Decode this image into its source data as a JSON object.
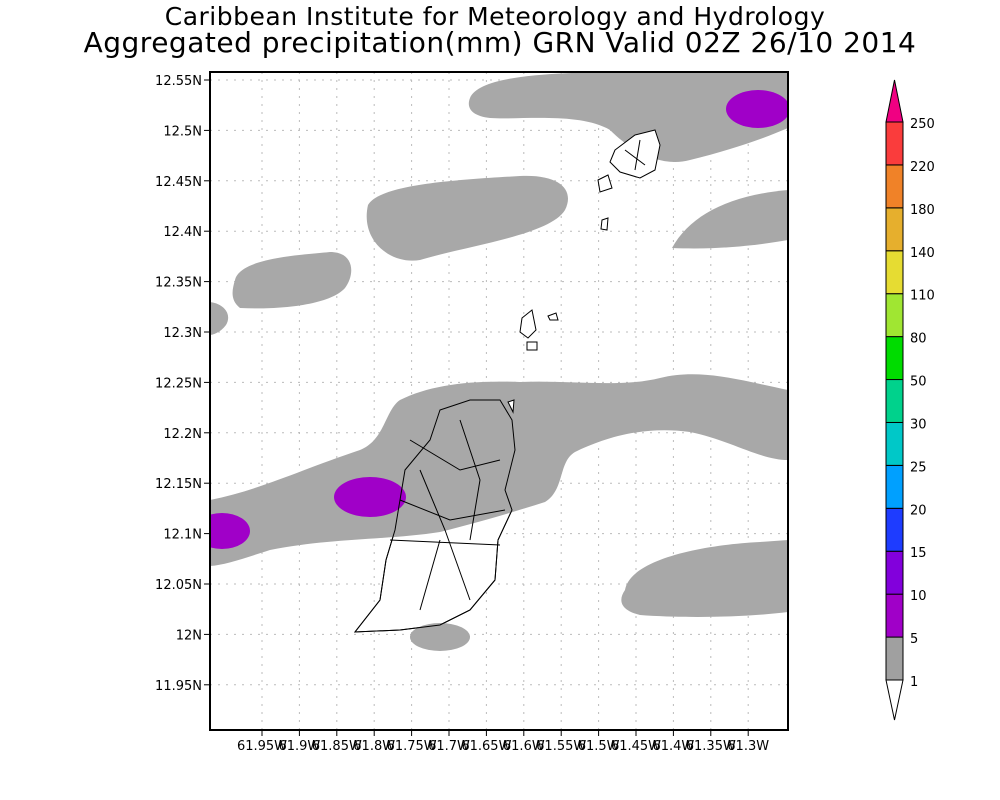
{
  "title_line1": "Caribbean Institute for Meteorology and Hydrology",
  "title_line2": "Aggregated precipitation(mm) GRN Valid 02Z 26/10 2014",
  "map": {
    "lat_labels": [
      "12.55N",
      "12.5N",
      "12.45N",
      "12.4N",
      "12.35N",
      "12.3N",
      "12.25N",
      "12.2N",
      "12.15N",
      "12.1N",
      "12.05N",
      "12N",
      "11.95N"
    ],
    "lon_labels": [
      "61.95W",
      "61.9W",
      "61.85W",
      "61.8W",
      "61.75W",
      "61.7W",
      "61.65W",
      "61.6W",
      "61.55W",
      "61.5W",
      "61.45W",
      "61.4W",
      "61.35W",
      "61.3W"
    ]
  },
  "colorbar": {
    "levels": [
      "1",
      "5",
      "10",
      "15",
      "20",
      "25",
      "30",
      "50",
      "80",
      "110",
      "140",
      "180",
      "220",
      "250"
    ],
    "colors": [
      "#a0a0a0",
      "#a000c8",
      "#8200dc",
      "#1e3cff",
      "#00a0ff",
      "#00c8c8",
      "#00d28c",
      "#00dc00",
      "#a0e632",
      "#e6dc32",
      "#e6af2d",
      "#f08228",
      "#fa3c3c"
    ],
    "top_arrow_color": "#f00082",
    "bottom_arrow_color": "#ffffff"
  }
}
